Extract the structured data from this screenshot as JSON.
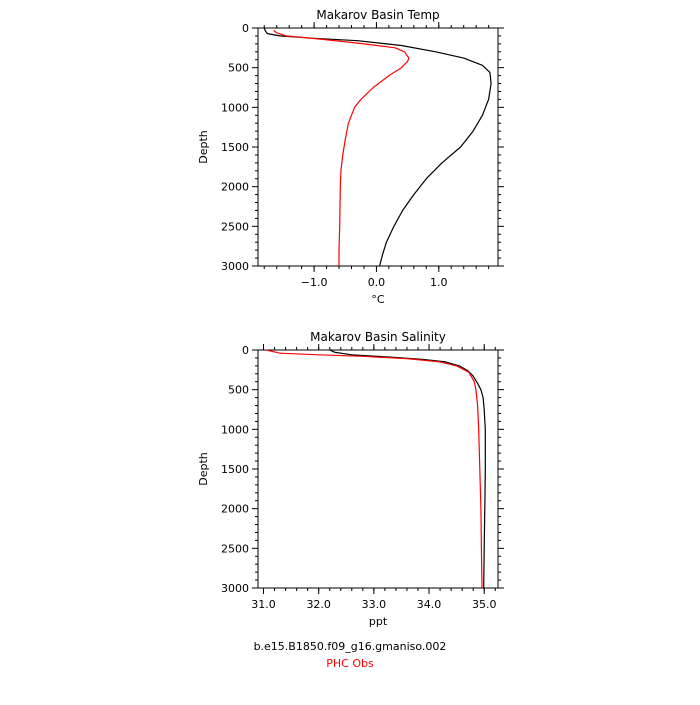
{
  "chart_data": [
    {
      "type": "line",
      "title": "Makarov Basin Temp",
      "xlabel": "°C",
      "ylabel": "Depth",
      "xlim": [
        -1.9,
        1.95
      ],
      "ylim": [
        3000,
        0
      ],
      "x_tick_labels": [
        "−1.0",
        "0.0",
        "1.0"
      ],
      "x_ticks": [
        -1.0,
        0.0,
        1.0
      ],
      "y_ticks": [
        0,
        500,
        1000,
        1500,
        2000,
        2500,
        3000
      ],
      "y_tick_labels": [
        "0",
        "500",
        "1000",
        "1500",
        "2000",
        "2500",
        "3000"
      ],
      "series": [
        {
          "color": "#000000",
          "points": [
            [
              -1.8,
              0
            ],
            [
              -1.78,
              40
            ],
            [
              -1.75,
              70
            ],
            [
              -1.55,
              100
            ],
            [
              -1.0,
              130
            ],
            [
              -0.3,
              160
            ],
            [
              0.4,
              220
            ],
            [
              0.95,
              300
            ],
            [
              1.4,
              380
            ],
            [
              1.7,
              470
            ],
            [
              1.82,
              560
            ],
            [
              1.84,
              700
            ],
            [
              1.8,
              900
            ],
            [
              1.7,
              1100
            ],
            [
              1.55,
              1300
            ],
            [
              1.35,
              1500
            ],
            [
              1.05,
              1700
            ],
            [
              0.8,
              1900
            ],
            [
              0.6,
              2100
            ],
            [
              0.42,
              2300
            ],
            [
              0.28,
              2500
            ],
            [
              0.16,
              2700
            ],
            [
              0.1,
              2850
            ],
            [
              0.05,
              3000
            ]
          ]
        },
        {
          "color": "#ff0000",
          "points": [
            [
              -1.65,
              30
            ],
            [
              -1.6,
              60
            ],
            [
              -1.45,
              100
            ],
            [
              -0.9,
              140
            ],
            [
              -0.3,
              190
            ],
            [
              0.3,
              250
            ],
            [
              0.45,
              300
            ],
            [
              0.52,
              380
            ],
            [
              0.5,
              420
            ],
            [
              0.4,
              500
            ],
            [
              0.2,
              600
            ],
            [
              -0.05,
              750
            ],
            [
              -0.25,
              900
            ],
            [
              -0.35,
              1000
            ],
            [
              -0.45,
              1200
            ],
            [
              -0.5,
              1400
            ],
            [
              -0.54,
              1600
            ],
            [
              -0.57,
              1800
            ],
            [
              -0.58,
              2000
            ],
            [
              -0.59,
              2500
            ],
            [
              -0.6,
              2800
            ],
            [
              -0.6,
              3000
            ]
          ]
        }
      ]
    },
    {
      "type": "line",
      "title": "Makarov Basin Salinity",
      "xlabel": "ppt",
      "ylabel": "Depth",
      "xlim": [
        30.9,
        35.25
      ],
      "ylim": [
        3000,
        0
      ],
      "x_tick_labels": [
        "31.0",
        "32.0",
        "33.0",
        "34.0",
        "35.0"
      ],
      "x_ticks": [
        31.0,
        32.0,
        33.0,
        34.0,
        35.0
      ],
      "y_ticks": [
        0,
        500,
        1000,
        1500,
        2000,
        2500,
        3000
      ],
      "y_tick_labels": [
        "0",
        "500",
        "1000",
        "1500",
        "2000",
        "2500",
        "3000"
      ],
      "series": [
        {
          "color": "#000000",
          "points": [
            [
              32.2,
              0
            ],
            [
              32.3,
              30
            ],
            [
              32.6,
              60
            ],
            [
              33.3,
              90
            ],
            [
              33.9,
              120
            ],
            [
              34.3,
              150
            ],
            [
              34.55,
              200
            ],
            [
              34.7,
              260
            ],
            [
              34.8,
              330
            ],
            [
              34.88,
              420
            ],
            [
              34.94,
              500
            ],
            [
              34.98,
              600
            ],
            [
              35.0,
              750
            ],
            [
              35.02,
              1000
            ],
            [
              35.02,
              1500
            ],
            [
              35.01,
              2000
            ],
            [
              35.0,
              2500
            ],
            [
              34.99,
              3000
            ]
          ]
        },
        {
          "color": "#ff0000",
          "points": [
            [
              31.05,
              0
            ],
            [
              31.3,
              40
            ],
            [
              32.0,
              60
            ],
            [
              32.8,
              80
            ],
            [
              33.6,
              110
            ],
            [
              34.2,
              150
            ],
            [
              34.5,
              200
            ],
            [
              34.72,
              280
            ],
            [
              34.82,
              400
            ],
            [
              34.85,
              500
            ],
            [
              34.88,
              700
            ],
            [
              34.9,
              1000
            ],
            [
              34.92,
              1500
            ],
            [
              34.94,
              2000
            ],
            [
              34.95,
              2500
            ],
            [
              34.96,
              3000
            ]
          ]
        }
      ]
    }
  ],
  "footer": {
    "model_label": "b.e15.B1850.f09_g16.gmaniso.002",
    "obs_label": "PHC Obs",
    "obs_color": "#ff0000"
  }
}
